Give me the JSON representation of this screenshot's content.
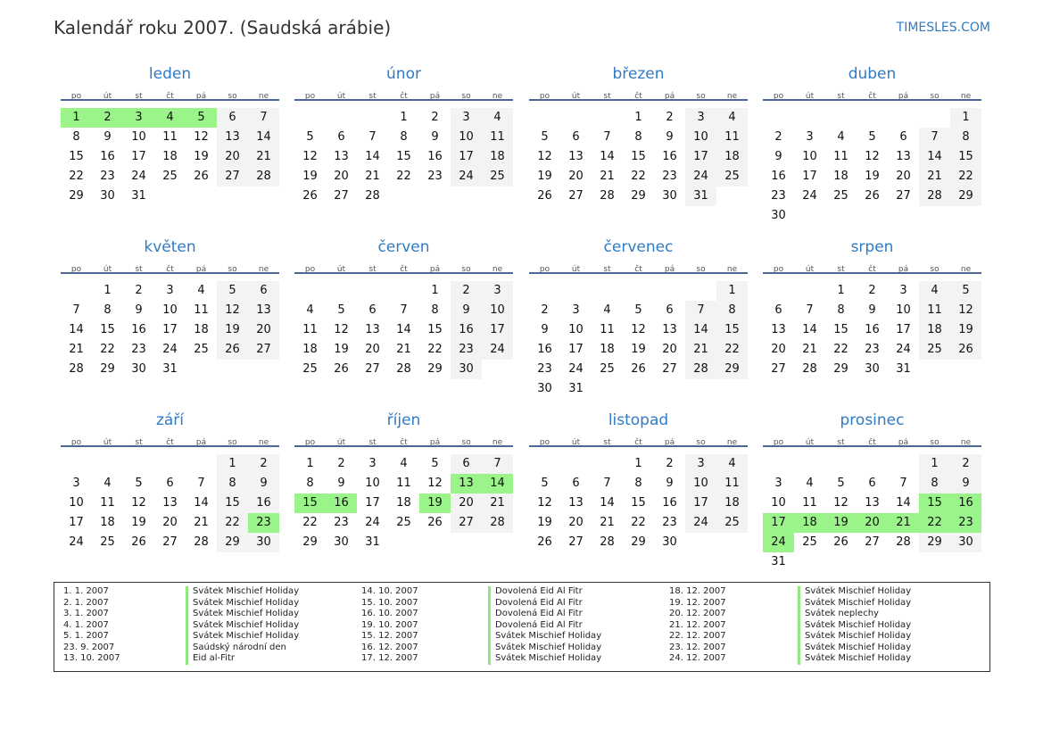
{
  "header": {
    "title": "Kalendář roku 2007. (Saudská arábie)",
    "brand": "TIMESLES.COM"
  },
  "colors": {
    "accent": "#2f7bc4",
    "holiday": "#9af48a",
    "weekend": "#f3f3f3",
    "rule": "#4b6796"
  },
  "weekdays": [
    "po",
    "út",
    "st",
    "čt",
    "pá",
    "so",
    "ne"
  ],
  "months": [
    {
      "name": "leden",
      "first_weekday": "po",
      "days": 31,
      "holidays": [
        1,
        2,
        3,
        4,
        5
      ]
    },
    {
      "name": "únor",
      "first_weekday": "čt",
      "days": 28,
      "holidays": []
    },
    {
      "name": "březen",
      "first_weekday": "čt",
      "days": 31,
      "holidays": []
    },
    {
      "name": "duben",
      "first_weekday": "ne",
      "days": 30,
      "holidays": []
    },
    {
      "name": "květen",
      "first_weekday": "út",
      "days": 31,
      "holidays": []
    },
    {
      "name": "červen",
      "first_weekday": "pá",
      "days": 30,
      "holidays": []
    },
    {
      "name": "červenec",
      "first_weekday": "ne",
      "days": 31,
      "holidays": []
    },
    {
      "name": "srpen",
      "first_weekday": "st",
      "days": 31,
      "holidays": []
    },
    {
      "name": "září",
      "first_weekday": "so",
      "days": 30,
      "holidays": [
        23
      ]
    },
    {
      "name": "říjen",
      "first_weekday": "po",
      "days": 31,
      "holidays": [
        13,
        14,
        15,
        16,
        19
      ]
    },
    {
      "name": "listopad",
      "first_weekday": "čt",
      "days": 30,
      "holidays": []
    },
    {
      "name": "prosinec",
      "first_weekday": "so",
      "days": 31,
      "holidays": [
        15,
        16,
        17,
        18,
        19,
        20,
        21,
        22,
        23,
        24
      ]
    }
  ],
  "legend": [
    {
      "date": "1. 1. 2007",
      "name": "Svátek Mischief Holiday"
    },
    {
      "date": "2. 1. 2007",
      "name": "Svátek Mischief Holiday"
    },
    {
      "date": "3. 1. 2007",
      "name": "Svátek Mischief Holiday"
    },
    {
      "date": "4. 1. 2007",
      "name": "Svátek Mischief Holiday"
    },
    {
      "date": "5. 1. 2007",
      "name": "Svátek Mischief Holiday"
    },
    {
      "date": "23. 9. 2007",
      "name": "Saúdský národní den"
    },
    {
      "date": "13. 10. 2007",
      "name": "Eid al-Fitr"
    },
    {
      "date": "14. 10. 2007",
      "name": "Dovolená Eid Al Fitr"
    },
    {
      "date": "15. 10. 2007",
      "name": "Dovolená Eid Al Fitr"
    },
    {
      "date": "16. 10. 2007",
      "name": "Dovolená Eid Al Fitr"
    },
    {
      "date": "19. 10. 2007",
      "name": "Dovolená Eid Al Fitr"
    },
    {
      "date": "15. 12. 2007",
      "name": "Svátek Mischief Holiday"
    },
    {
      "date": "16. 12. 2007",
      "name": "Svátek Mischief Holiday"
    },
    {
      "date": "17. 12. 2007",
      "name": "Svátek Mischief Holiday"
    },
    {
      "date": "18. 12. 2007",
      "name": "Svátek Mischief Holiday"
    },
    {
      "date": "19. 12. 2007",
      "name": "Svátek Mischief Holiday"
    },
    {
      "date": "20. 12. 2007",
      "name": "Svátek neplechy"
    },
    {
      "date": "21. 12. 2007",
      "name": "Svátek Mischief Holiday"
    },
    {
      "date": "22. 12. 2007",
      "name": "Svátek Mischief Holiday"
    },
    {
      "date": "23. 12. 2007",
      "name": "Svátek Mischief Holiday"
    },
    {
      "date": "24. 12. 2007",
      "name": "Svátek Mischief Holiday"
    }
  ]
}
